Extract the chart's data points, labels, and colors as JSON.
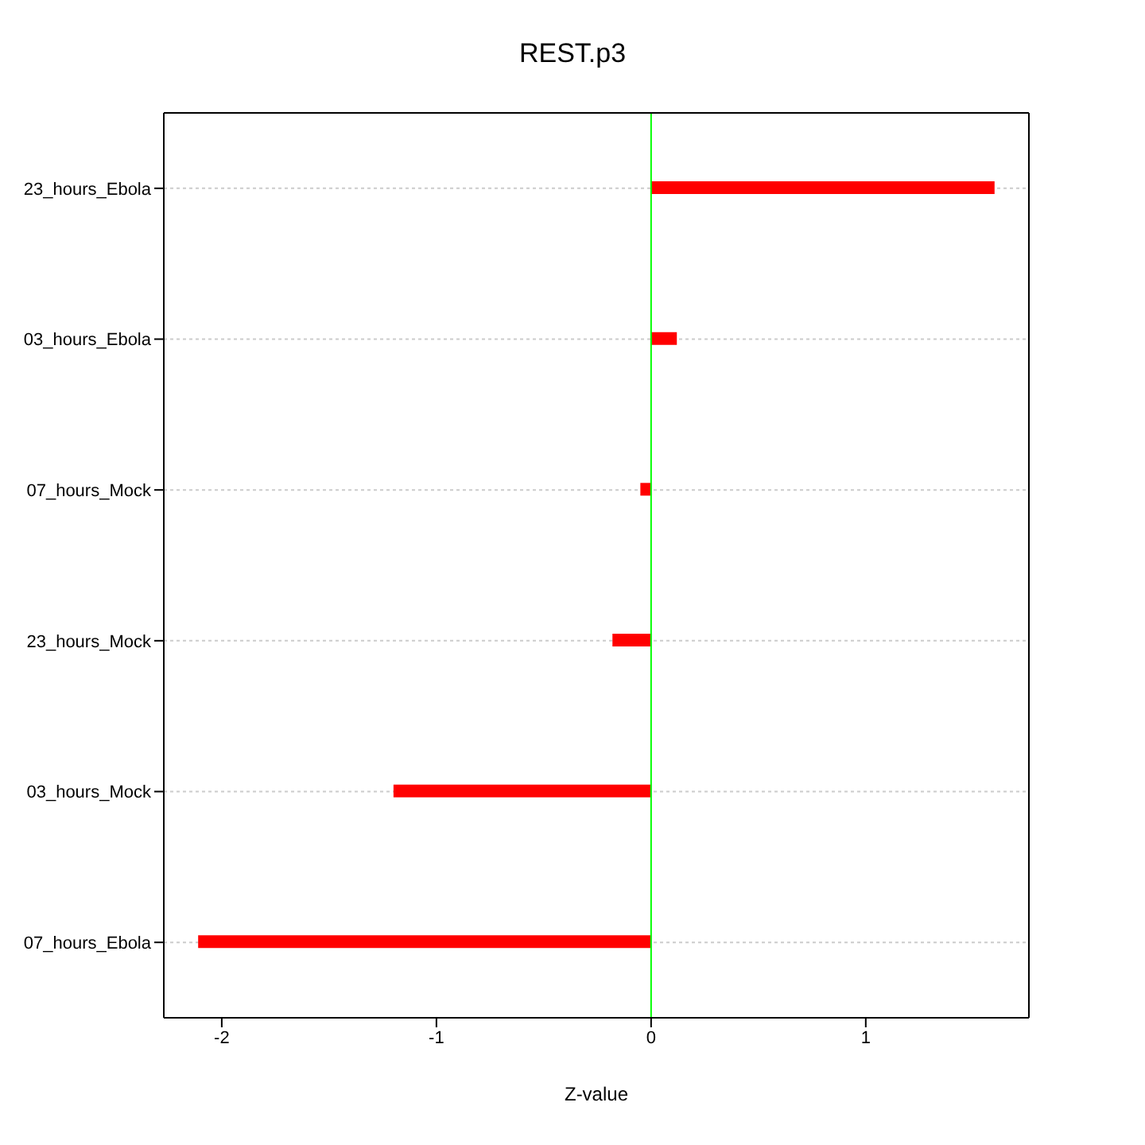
{
  "chart_data": {
    "type": "bar",
    "orientation": "horizontal",
    "title": "REST.p3",
    "xlabel": "Z-value",
    "categories": [
      "23_hours_Ebola",
      "03_hours_Ebola",
      "07_hours_Mock",
      "23_hours_Mock",
      "03_hours_Mock",
      "07_hours_Ebola"
    ],
    "values": [
      1.6,
      0.12,
      -0.05,
      -0.18,
      -1.2,
      -2.11
    ],
    "color": "#ff0000",
    "xlim": [
      -2.27,
      1.76
    ],
    "xticks": [
      -2,
      -1,
      0,
      1
    ],
    "grid": "y",
    "ref_lines": [
      {
        "axis": "x",
        "value": 0,
        "color": "#00ff00"
      }
    ]
  }
}
